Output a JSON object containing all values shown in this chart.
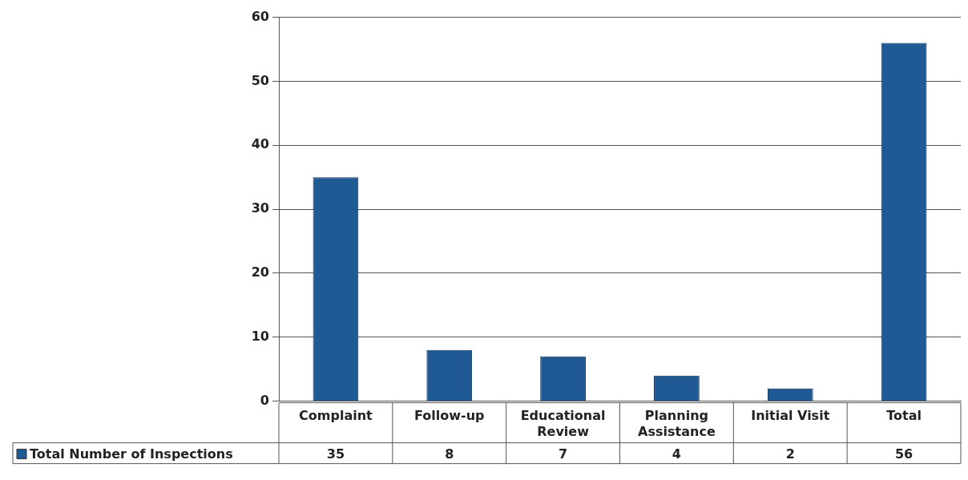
{
  "chart_data": {
    "type": "bar",
    "categories": [
      "Complaint",
      "Follow-up",
      "Educational Review",
      "Planning Assistance",
      "Initial Visit",
      "Total"
    ],
    "series": [
      {
        "name": "Total Number of Inspections",
        "color": "#1f5a94",
        "values": [
          35,
          8,
          7,
          4,
          2,
          56
        ]
      }
    ],
    "ylim": [
      0,
      60
    ],
    "yticks": [
      0,
      10,
      20,
      30,
      40,
      50,
      60
    ],
    "grid": "y",
    "data_labels": true,
    "legend": "bottom left"
  }
}
